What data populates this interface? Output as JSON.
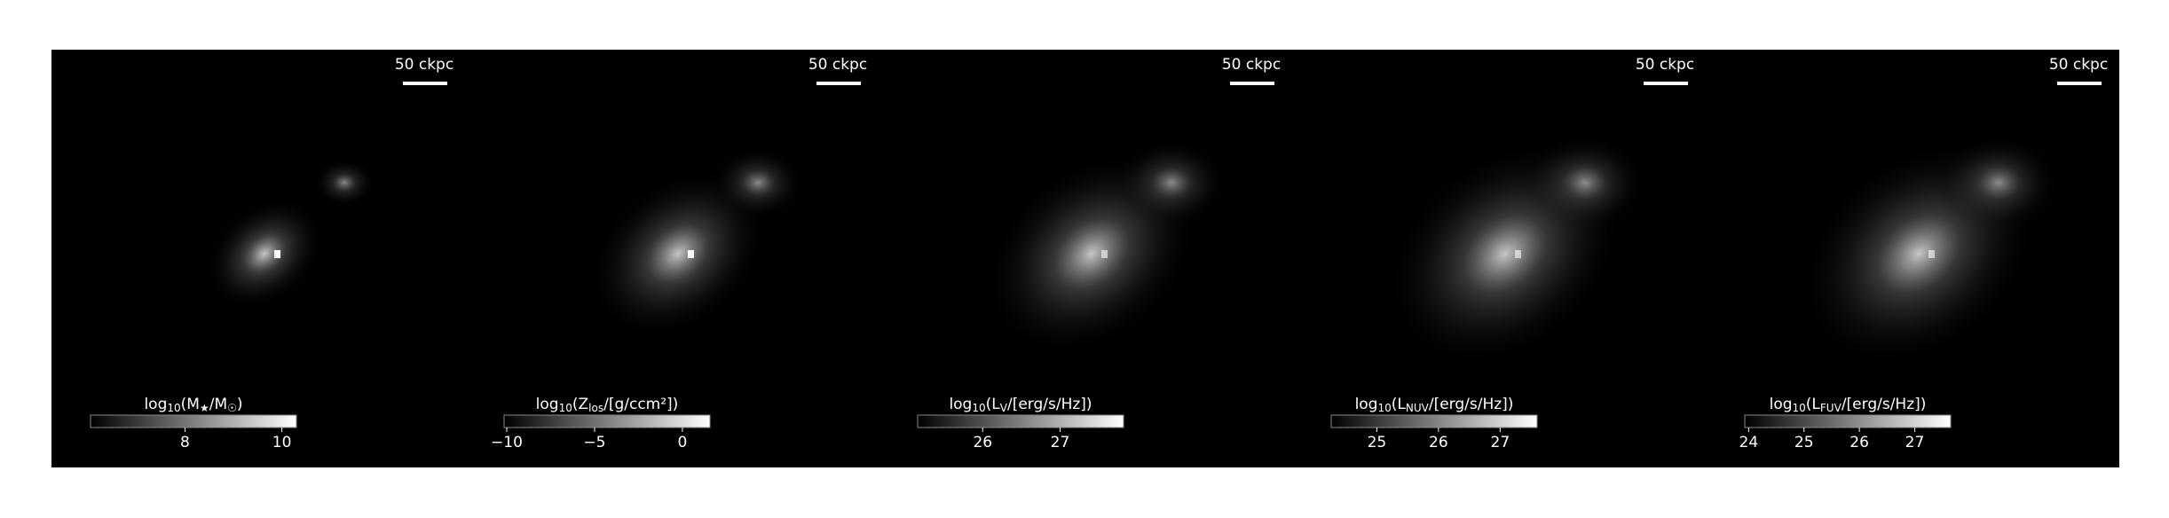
{
  "chart_data": [
    {
      "type": "image",
      "scale_bar": "50 ckpc",
      "colorbar_label": [
        "log",
        "10",
        "(M",
        "★",
        "/M",
        "☉",
        ")"
      ],
      "clim": [
        6.05,
        10.3
      ],
      "cticks": [
        8,
        10
      ]
    },
    {
      "type": "image",
      "scale_bar": "50 ckpc",
      "colorbar_label": [
        "log",
        "10",
        "(Z",
        "los",
        "/[g/ccm²])"
      ],
      "clim": [
        -10.15,
        1.57
      ],
      "cticks": [
        {
          "value": -10,
          "label": "−10"
        },
        {
          "value": -5,
          "label": "−5"
        },
        0
      ]
    },
    {
      "type": "image",
      "scale_bar": "50 ckpc",
      "colorbar_label": [
        "log",
        "10",
        "(L",
        "V",
        "/[erg/s/Hz])"
      ],
      "clim": [
        25.16,
        27.82
      ],
      "cticks": [
        26,
        27
      ]
    },
    {
      "type": "image",
      "scale_bar": "50 ckpc",
      "colorbar_label": [
        "log",
        "10",
        "(L",
        "NUV",
        "/[erg/s/Hz])"
      ],
      "clim": [
        24.26,
        27.6
      ],
      "cticks": [
        25,
        26,
        27
      ]
    },
    {
      "type": "image",
      "scale_bar": "50 ckpc",
      "colorbar_label": [
        "log",
        "10",
        "(L",
        "FUV",
        "/[erg/s/Hz])"
      ],
      "clim": [
        23.93,
        27.65
      ],
      "cticks": [
        24,
        25,
        26,
        27
      ]
    }
  ]
}
